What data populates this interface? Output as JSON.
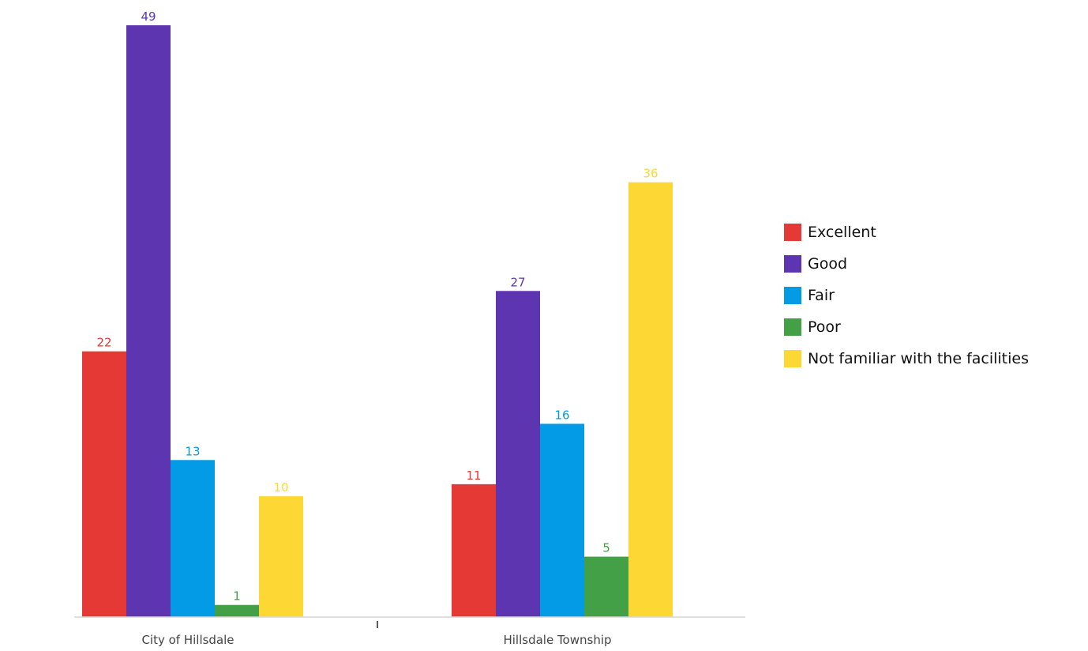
{
  "chart_data": {
    "type": "bar",
    "categories": [
      "City of Hillsdale",
      "Hillsdale Township"
    ],
    "series": [
      {
        "name": "Excellent",
        "values": [
          22,
          11
        ],
        "color": "#e53935"
      },
      {
        "name": "Good",
        "values": [
          49,
          27
        ],
        "color": "#5e35b1"
      },
      {
        "name": "Fair",
        "values": [
          13,
          16
        ],
        "color": "#039be5"
      },
      {
        "name": "Poor",
        "values": [
          1,
          5
        ],
        "color": "#43a047"
      },
      {
        "name": "Not familiar with the facilities",
        "values": [
          10,
          36
        ],
        "color": "#fdd835"
      }
    ],
    "title": "",
    "xlabel": "",
    "ylabel": "",
    "ylim": [
      0,
      49
    ],
    "grid": false,
    "data_labels": true,
    "legend_position": "right"
  }
}
